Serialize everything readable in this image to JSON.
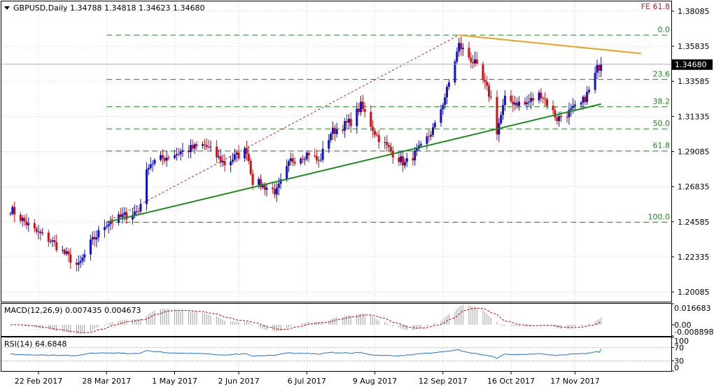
{
  "header": {
    "symbol": "GBPUSD,Daily",
    "ohlc": "1.34788 1.34818 1.34623 1.34680",
    "fe_label": "FE 61.8"
  },
  "price_axis": {
    "ticks": [
      "1.38085",
      "1.35835",
      "1.33585",
      "1.31335",
      "1.29085",
      "1.26835",
      "1.24585",
      "1.22335",
      "1.20085"
    ],
    "current": "1.34680"
  },
  "time_axis": {
    "labels": [
      "22 Feb 2017",
      "28 Mar 2017",
      "1 May 2017",
      "2 Jun 2017",
      "6 Jul 2017",
      "9 Aug 2017",
      "12 Sep 2017",
      "16 Oct 2017",
      "17 Nov 2017"
    ]
  },
  "fib_levels": [
    {
      "label": "0.0",
      "price": 1.3655
    },
    {
      "label": "23.6",
      "price": 1.3371
    },
    {
      "label": "38.2",
      "price": 1.3196
    },
    {
      "label": "50.0",
      "price": 1.3054
    },
    {
      "label": "61.8",
      "price": 1.2912
    },
    {
      "label": "100.0",
      "price": 1.2455
    }
  ],
  "macd": {
    "label": "MACD(12,26,9) 0.007435 0.004673",
    "ticks": [
      "0.016683",
      "0.00",
      "-0.008898"
    ]
  },
  "rsi": {
    "label": "RSI(14) 64.6848",
    "ticks": [
      "100",
      "70",
      "30",
      "0"
    ]
  },
  "colors": {
    "bull": "#1010c8",
    "bear": "#d01010",
    "trend_support": "#1a8a1a",
    "trend_resistance": "#f0a020",
    "fib": "#1a8a1a",
    "macd_signal": "#c00000",
    "rsi_line": "#1e6fd8"
  },
  "chart_data": {
    "type": "candlestick",
    "symbol": "GBPUSD",
    "timeframe": "Daily",
    "x_range": [
      "2017-02-08",
      "2017-11-30"
    ],
    "ylim": [
      1.1946,
      1.3871
    ],
    "price_path": [
      [
        "2017-02-08",
        1.254
      ],
      [
        "2017-02-20",
        1.24
      ],
      [
        "2017-02-28",
        1.234
      ],
      [
        "2017-03-14",
        1.217
      ],
      [
        "2017-03-20",
        1.232
      ],
      [
        "2017-03-28",
        1.245
      ],
      [
        "2017-04-07",
        1.25
      ],
      [
        "2017-04-13",
        1.253
      ],
      [
        "2017-04-18",
        1.283
      ],
      [
        "2017-04-28",
        1.288
      ],
      [
        "2017-05-10",
        1.293
      ],
      [
        "2017-05-16",
        1.295
      ],
      [
        "2017-05-26",
        1.283
      ],
      [
        "2017-06-06",
        1.292
      ],
      [
        "2017-06-09",
        1.272
      ],
      [
        "2017-06-21",
        1.265
      ],
      [
        "2017-06-28",
        1.285
      ],
      [
        "2017-07-07",
        1.29
      ],
      [
        "2017-07-12",
        1.284
      ],
      [
        "2017-07-18",
        1.303
      ],
      [
        "2017-07-28",
        1.31
      ],
      [
        "2017-08-02",
        1.32
      ],
      [
        "2017-08-10",
        1.301
      ],
      [
        "2017-08-17",
        1.291
      ],
      [
        "2017-08-24",
        1.283
      ],
      [
        "2017-09-01",
        1.293
      ],
      [
        "2017-09-08",
        1.307
      ],
      [
        "2017-09-14",
        1.33
      ],
      [
        "2017-09-20",
        1.359
      ],
      [
        "2017-09-28",
        1.347
      ],
      [
        "2017-10-06",
        1.325
      ],
      [
        "2017-10-09",
        1.304
      ],
      [
        "2017-10-13",
        1.324
      ],
      [
        "2017-10-23",
        1.321
      ],
      [
        "2017-10-31",
        1.328
      ],
      [
        "2017-11-08",
        1.312
      ],
      [
        "2017-11-14",
        1.316
      ],
      [
        "2017-11-20",
        1.321
      ],
      [
        "2017-11-25",
        1.332
      ],
      [
        "2017-11-28",
        1.344
      ],
      [
        "2017-11-30",
        1.3468
      ]
    ],
    "current_price": 1.3468,
    "trendlines": [
      {
        "role": "support",
        "from": [
          "2017-03-28",
          1.2455
        ],
        "to": [
          "2017-11-30",
          1.3213
        ]
      },
      {
        "role": "resistance",
        "from": [
          "2017-09-20",
          1.3655
        ],
        "to": [
          "2017-12-20",
          1.3537
        ]
      },
      {
        "role": "fib-swing",
        "from": [
          "2017-03-28",
          1.2455
        ],
        "to": [
          "2017-09-20",
          1.3655
        ]
      }
    ],
    "fibonacci": {
      "0.0": 1.3655,
      "23.6": 1.3371,
      "38.2": 1.3196,
      "50.0": 1.3054,
      "61.8": 1.2912,
      "100.0": 1.2455
    },
    "macd": {
      "main": 0.007435,
      "signal": 0.004673,
      "ylim": [
        -0.008898,
        0.016683
      ]
    },
    "rsi": {
      "value": 64.6848,
      "levels": [
        70,
        30
      ],
      "ylim": [
        0,
        100
      ]
    }
  }
}
